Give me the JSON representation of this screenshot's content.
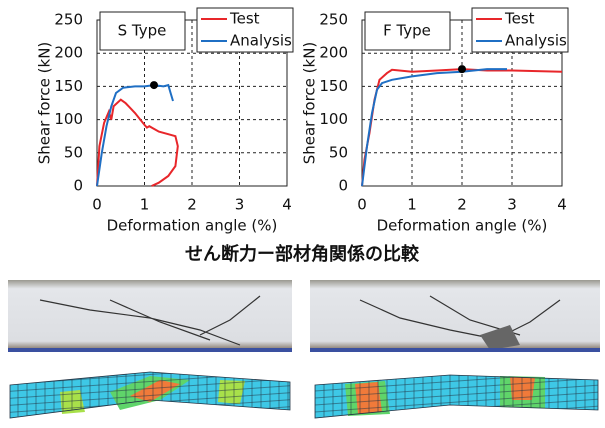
{
  "chart_data": [
    {
      "type": "line",
      "annotation": "S Type",
      "xlabel": "Deformation angle (%)",
      "ylabel": "Shear force (kN)",
      "xlim": [
        0,
        4
      ],
      "ylim": [
        0,
        250
      ],
      "xticks": [
        0,
        1,
        2,
        3,
        4
      ],
      "yticks": [
        0,
        50,
        100,
        150,
        200,
        250
      ],
      "grid": true,
      "legend": "upper right",
      "series": [
        {
          "name": "Test",
          "color": "#e8262a",
          "x": [
            0,
            0.05,
            0.15,
            0.25,
            0.3,
            0.35,
            0.5,
            0.6,
            0.8,
            1.0,
            1.05,
            1.1,
            1.2,
            1.3,
            1.5,
            1.65,
            1.7,
            1.65,
            1.5,
            1.3,
            1.15
          ],
          "values": [
            0,
            60,
            95,
            112,
            100,
            120,
            130,
            125,
            110,
            92,
            88,
            90,
            86,
            82,
            78,
            75,
            60,
            30,
            15,
            5,
            0
          ]
        },
        {
          "name": "Analysis",
          "color": "#1f6fc4",
          "x": [
            0,
            0.1,
            0.2,
            0.3,
            0.4,
            0.55,
            0.8,
            1.0,
            1.2,
            1.4,
            1.5,
            1.55,
            1.6
          ],
          "values": [
            0,
            50,
            90,
            120,
            140,
            148,
            150,
            150,
            152,
            150,
            152,
            140,
            128
          ]
        }
      ],
      "marker": {
        "x": 1.2,
        "y": 152
      }
    },
    {
      "type": "line",
      "annotation": "F Type",
      "xlabel": "Deformation angle (%)",
      "ylabel": "Shear force (kN)",
      "xlim": [
        0,
        4
      ],
      "ylim": [
        0,
        250
      ],
      "xticks": [
        0,
        1,
        2,
        3,
        4
      ],
      "yticks": [
        0,
        50,
        100,
        150,
        200,
        250
      ],
      "grid": true,
      "legend": "upper right",
      "series": [
        {
          "name": "Test",
          "color": "#e8262a",
          "x": [
            0,
            0.05,
            0.15,
            0.25,
            0.35,
            0.5,
            0.6,
            1.0,
            1.5,
            2.0,
            2.5,
            3.0,
            4.0
          ],
          "values": [
            0,
            40,
            80,
            130,
            160,
            170,
            175,
            172,
            174,
            176,
            174,
            174,
            172
          ]
        },
        {
          "name": "Analysis",
          "color": "#1f6fc4",
          "x": [
            0,
            0.1,
            0.2,
            0.3,
            0.4,
            0.6,
            1.0,
            1.5,
            2.0,
            2.5,
            2.9
          ],
          "values": [
            0,
            60,
            110,
            145,
            155,
            160,
            165,
            170,
            172,
            176,
            176
          ]
        }
      ],
      "marker": {
        "x": 2.0,
        "y": 176
      }
    }
  ],
  "caption": "せん断力ー部材角関係の比較"
}
